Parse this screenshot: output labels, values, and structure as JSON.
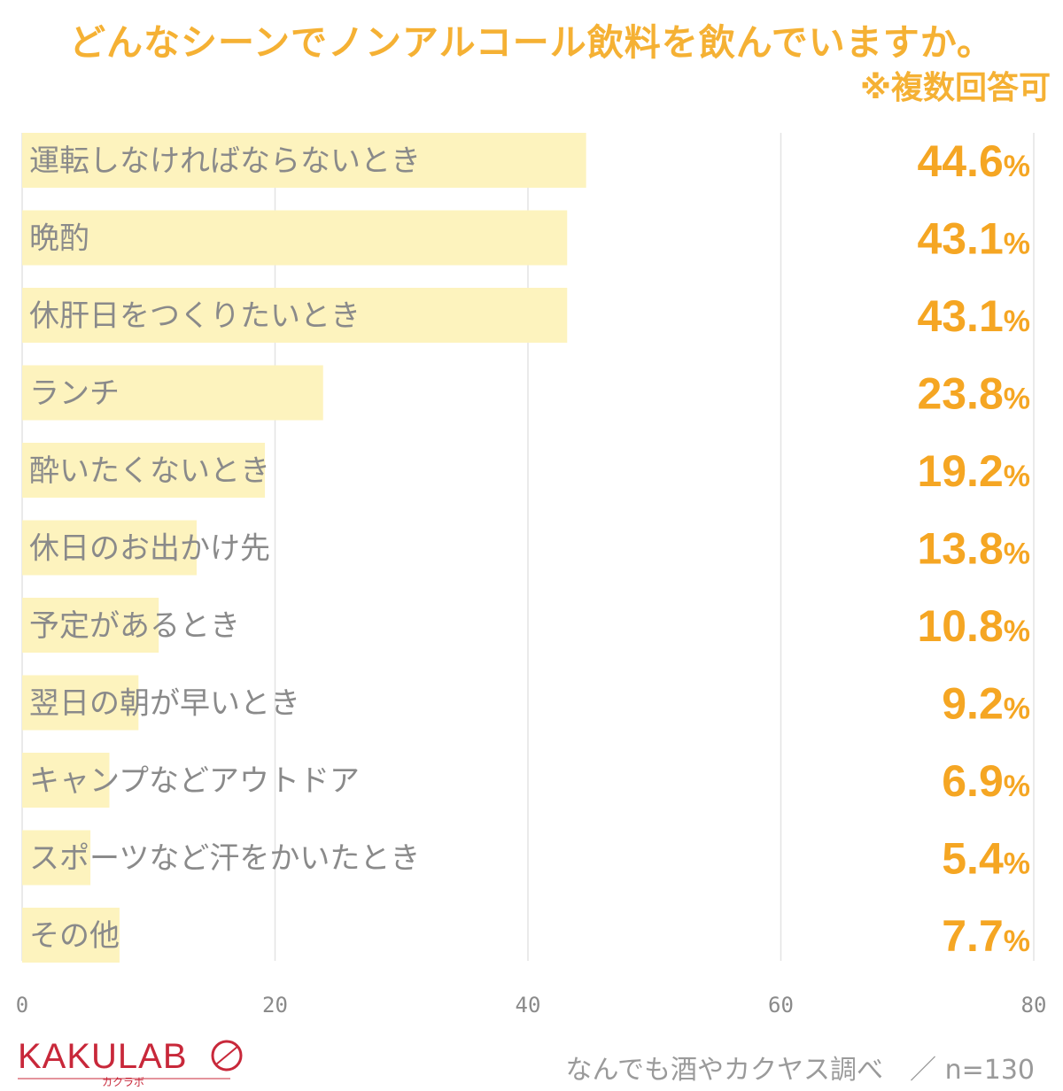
{
  "title": "どんなシーンでノンアルコール飲料を飲んでいますか。",
  "subtitle": "※複数回答可",
  "source": "なんでも酒やカクヤス調べ　／ n=130",
  "logo": {
    "text": "KAKULAB",
    "subtext": "カクラボ"
  },
  "colors": {
    "bar": "#fdf3be",
    "value": "#f5a623",
    "label": "#8a8a8a",
    "grid": "#e4e4e4",
    "title": "#f5b134",
    "logo": "#c8283a"
  },
  "chart_data": {
    "type": "bar",
    "orientation": "horizontal",
    "unit": "%",
    "xlim": [
      0,
      80
    ],
    "xticks": [
      0,
      20,
      40,
      60,
      80
    ],
    "grid": true,
    "categories": [
      "運転しなければならないとき",
      "晩酌",
      "休肝日をつくりたいとき",
      "ランチ",
      "酔いたくないとき",
      "休日のお出かけ先",
      "予定があるとき",
      "翌日の朝が早いとき",
      "キャンプなどアウトドア",
      "スポーツなど汗をかいたとき",
      "その他"
    ],
    "values": [
      44.6,
      43.1,
      43.1,
      23.8,
      19.2,
      13.8,
      10.8,
      9.2,
      6.9,
      5.4,
      7.7
    ]
  }
}
